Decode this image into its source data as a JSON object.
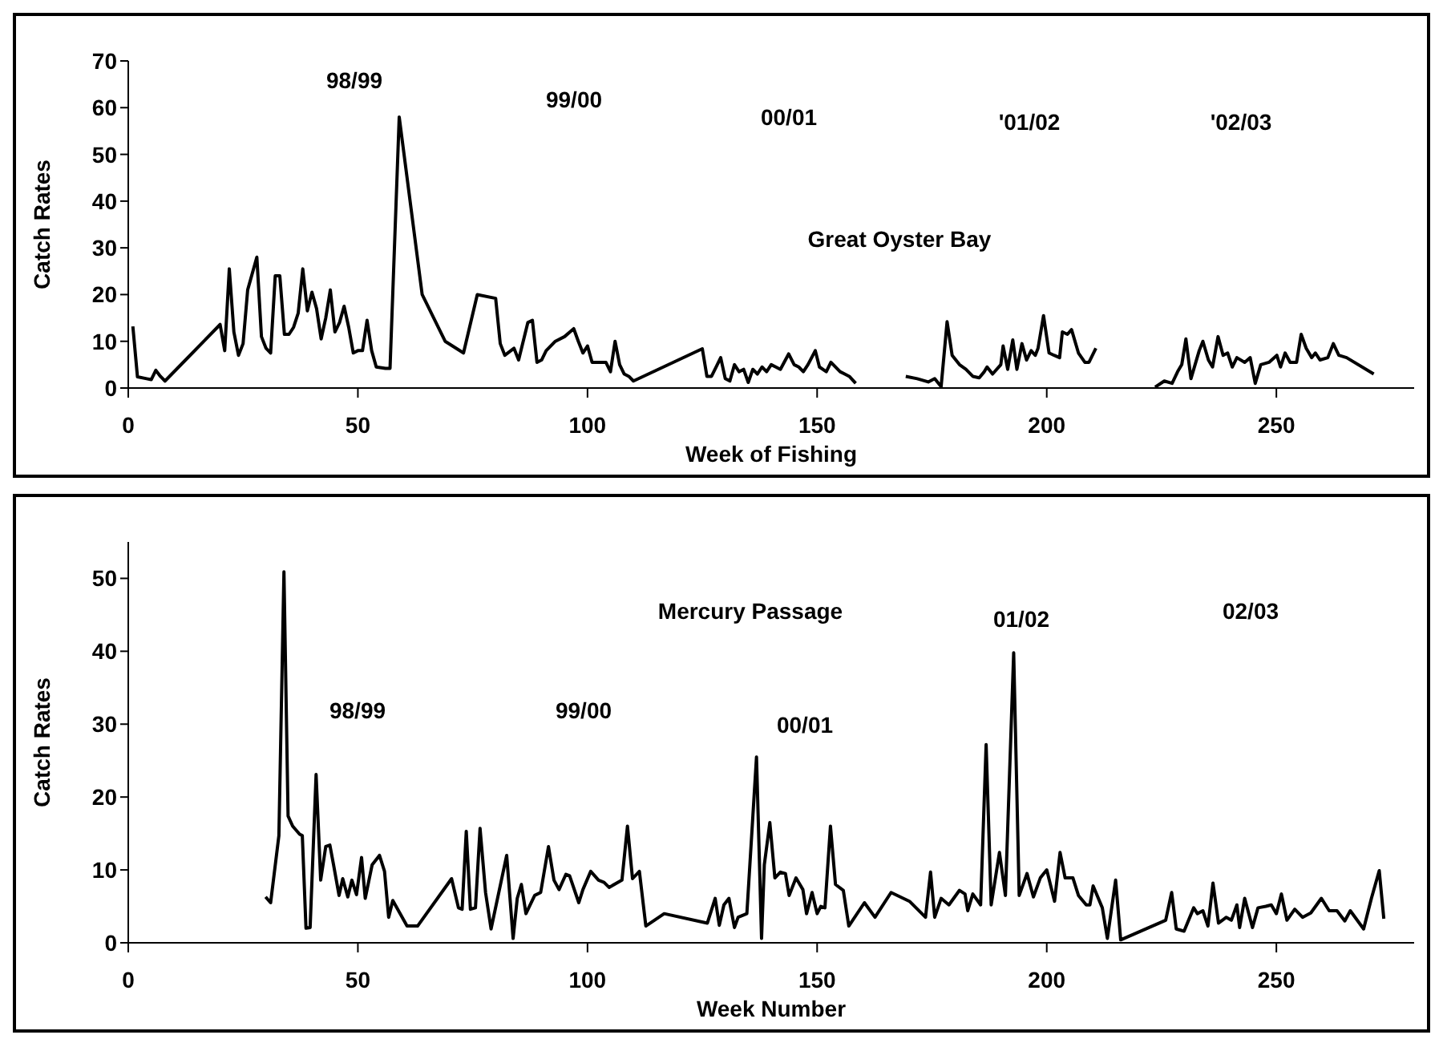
{
  "chart_data": [
    {
      "type": "line",
      "xlabel": "Week of Fishing",
      "ylabel": "Catch Rates",
      "color": "#000000",
      "xlim": [
        0,
        280
      ],
      "xticks": [
        0,
        50,
        100,
        150,
        200,
        250
      ],
      "ylim": [
        0,
        70
      ],
      "yticks": [
        0,
        10,
        20,
        30,
        40,
        50,
        60,
        70
      ],
      "annotations": [
        "98/99",
        "99/00",
        "00/01",
        "'01/02",
        "'02/03",
        "Great Oyster Bay"
      ],
      "x": [
        1,
        2,
        4,
        5,
        6,
        7,
        8,
        20,
        21,
        22,
        23,
        24,
        25,
        26,
        28,
        29,
        30,
        31,
        32,
        33,
        34,
        35,
        36,
        37,
        38,
        39,
        40,
        41,
        42,
        43,
        44,
        45,
        46,
        47,
        48,
        49,
        50,
        51,
        52,
        53,
        54,
        56,
        57,
        59,
        64,
        69,
        73,
        76,
        80,
        81,
        82,
        84,
        85,
        87,
        88,
        89,
        90,
        91,
        93,
        95,
        97,
        98,
        99,
        100,
        101,
        103,
        104,
        105,
        106,
        107,
        108,
        109,
        110,
        125,
        126,
        127,
        128,
        129,
        130,
        131,
        132,
        133,
        134,
        135,
        136,
        137,
        138,
        139,
        140,
        141,
        142,
        143.8,
        145,
        146,
        147,
        148,
        149.6,
        150.5,
        152,
        153,
        155,
        156,
        157,
        158.4,
        163,
        169.3,
        171.8,
        174.2,
        175.6,
        177,
        178.3,
        179.4,
        181,
        182.4,
        183.9,
        185.3,
        186.4,
        187,
        188.2,
        190,
        190.5,
        191.5,
        192.6,
        193.5,
        194.6,
        195.6,
        196.6,
        197.5,
        198.1,
        199.3,
        200.5,
        201.6,
        202.8,
        203.4,
        204.5,
        205.4,
        206.9,
        208.3,
        209.2,
        210.7,
        217,
        223.6,
        225.6,
        227.3,
        228.5,
        229.4,
        230.3,
        231.4,
        233.2,
        234,
        235.2,
        236.1,
        237.3,
        238.4,
        239.4,
        240.4,
        241.4,
        243.1,
        244.3,
        245.4,
        246.6,
        248.4,
        250.1,
        250.9,
        251.9,
        253,
        254.4,
        255.4,
        256.5,
        257.7,
        258.5,
        259.5,
        261.2,
        262.4,
        263.6,
        265.3,
        271.2
      ],
      "values": [
        13.2,
        2.4,
        2,
        1.8,
        3.8,
        2.5,
        1.5,
        13.6,
        8,
        25.5,
        12,
        7,
        9.5,
        21,
        28,
        11,
        8.5,
        7.5,
        24,
        24,
        11.5,
        11.5,
        13,
        16,
        25.5,
        16.5,
        20.5,
        17,
        10.5,
        15,
        21,
        12,
        14,
        17.5,
        13,
        7.5,
        8,
        8,
        14.5,
        8,
        4.5,
        4.2,
        4.2,
        58,
        20,
        10,
        7.5,
        20,
        19.2,
        9.5,
        7,
        8.5,
        6,
        14,
        14.5,
        5.5,
        6,
        8,
        10,
        11,
        12.7,
        10,
        7.5,
        9,
        5.5,
        5.5,
        5.5,
        3.5,
        10,
        5,
        3,
        2.5,
        1.5,
        8.4,
        2.5,
        2.5,
        4.5,
        6.5,
        2,
        1.5,
        5,
        3.5,
        4,
        1.2,
        4,
        3,
        4.5,
        3.5,
        5,
        4.5,
        4,
        7.3,
        5,
        4.5,
        3.5,
        5,
        8,
        4.5,
        3.5,
        5.5,
        3.5,
        3,
        2.5,
        1,
        null,
        2.5,
        2,
        1.3,
        2,
        0.3,
        14.2,
        7,
        5,
        4,
        2.5,
        2.2,
        3.5,
        4.5,
        3,
        5,
        9,
        4,
        10.3,
        4,
        9.5,
        6,
        8,
        7,
        8.5,
        15.5,
        7.5,
        7,
        6.5,
        12,
        11.5,
        12.5,
        7.5,
        5.5,
        5.5,
        8.5,
        null,
        0.2,
        1.5,
        1,
        3.5,
        5,
        10.5,
        2,
        8,
        10,
        6,
        4.5,
        11,
        7,
        7.5,
        4.5,
        6.5,
        5.5,
        6.5,
        1,
        5,
        5.5,
        7,
        4.5,
        7.5,
        5.5,
        5.5,
        11.5,
        8.5,
        6.5,
        7.5,
        6,
        6.5,
        9.5,
        7,
        6.5,
        3
      ]
    },
    {
      "type": "line",
      "xlabel": "Week Number",
      "ylabel": "Catch Rates",
      "color": "#000000",
      "xlim": [
        0,
        280
      ],
      "xticks": [
        0,
        50,
        100,
        150,
        200,
        250
      ],
      "ylim": [
        0,
        55
      ],
      "yticks": [
        0,
        10,
        20,
        30,
        40,
        50
      ],
      "annotations": [
        "Mercury Passage",
        "98/99",
        "99/00",
        "00/01",
        "01/02",
        "02/03"
      ],
      "x": [
        29.9,
        31,
        32.8,
        33.9,
        34.8,
        35.8,
        37.3,
        37.9,
        38.7,
        39.6,
        40.9,
        41.9,
        43,
        43.9,
        44.7,
        45.9,
        46.7,
        47.8,
        48.7,
        49.7,
        50.8,
        51.6,
        53.1,
        54.7,
        55.8,
        56.7,
        57.6,
        60.7,
        63,
        70.4,
        71.9,
        72.7,
        73.6,
        74.5,
        75.6,
        76.6,
        77.8,
        79,
        82.4,
        83.8,
        84.7,
        85.6,
        86.6,
        88.5,
        89.8,
        91.5,
        92.7,
        93.8,
        95.3,
        96.1,
        98.1,
        99,
        100.7,
        102.4,
        103.6,
        104.7,
        107.5,
        108.7,
        109.8,
        111.3,
        112.7,
        116.7,
        126.1,
        127.8,
        128.7,
        129.7,
        130.8,
        132,
        132.8,
        134.7,
        136.8,
        137.9,
        138.5,
        139.7,
        140.8,
        142,
        143.1,
        143.9,
        145.4,
        146.9,
        147.7,
        148.9,
        150,
        150.8,
        151.7,
        152.9,
        154,
        155.7,
        156.9,
        160.3,
        162.6,
        166.1,
        170.1,
        173.6,
        174.7,
        175.6,
        177,
        178.7,
        181,
        182.2,
        182.8,
        183.9,
        185.6,
        186.8,
        187.9,
        189.7,
        191,
        192.8,
        194,
        195.7,
        197.1,
        198.6,
        200,
        201.7,
        202.9,
        204,
        205.7,
        206.9,
        208.6,
        209.4,
        210.1,
        212.1,
        213.2,
        215,
        216.1,
        225.9,
        227.2,
        228.2,
        229.9,
        232,
        232.8,
        234,
        235.1,
        236.2,
        237.4,
        239.1,
        240.2,
        241.4,
        242,
        243.1,
        244.8,
        246,
        247.7,
        248.9,
        250,
        251.1,
        252.3,
        254,
        255.7,
        257.5,
        259.8,
        261.5,
        263.2,
        264.9,
        266.1,
        269,
        270.7,
        272.4,
        273.4
      ],
      "values": [
        6.3,
        5.5,
        14.7,
        50.9,
        17.4,
        16,
        14.9,
        14.7,
        2,
        2.1,
        23.1,
        8.6,
        13.2,
        13.4,
        10.7,
        6.5,
        8.8,
        6.3,
        8.6,
        6.6,
        11.7,
        6.1,
        10.7,
        12,
        9.8,
        3.5,
        5.8,
        2.3,
        2.3,
        8.8,
        4.8,
        4.6,
        15.3,
        4.6,
        4.8,
        15.7,
        6.9,
        1.9,
        12,
        0.6,
        6.1,
        8,
        4,
        6.5,
        6.9,
        13.2,
        8.6,
        7.3,
        9.4,
        9.2,
        5.5,
        7.3,
        9.8,
        8.6,
        8.3,
        7.6,
        8.6,
        16,
        8.8,
        9.8,
        2.3,
        4,
        2.7,
        6.1,
        2.4,
        5.2,
        6.1,
        2.1,
        3.5,
        4,
        25.5,
        0.6,
        10.7,
        16.5,
        8.9,
        9.7,
        9.5,
        6.5,
        8.9,
        7.3,
        4,
        6.9,
        4,
        5,
        4.8,
        16,
        8,
        7.2,
        2.3,
        5.5,
        3.5,
        6.9,
        5.7,
        3.5,
        9.7,
        3.5,
        6.1,
        5.2,
        7.2,
        6.7,
        4.4,
        6.7,
        5.2,
        27.2,
        5.2,
        12.4,
        6.5,
        39.8,
        6.5,
        9.5,
        6.3,
        8.9,
        10,
        5.7,
        12.4,
        8.9,
        8.9,
        6.5,
        5.2,
        5.2,
        7.8,
        4.8,
        0.6,
        8.6,
        0.4,
        3.1,
        6.9,
        1.9,
        1.6,
        4.8,
        4,
        4.4,
        2.3,
        8.2,
        2.7,
        3.5,
        3.1,
        5.2,
        2.1,
        6.1,
        2.1,
        4.8,
        5,
        5.2,
        4,
        6.7,
        3.1,
        4.6,
        3.5,
        4.1,
        6.1,
        4.4,
        4.4,
        3,
        4.4,
        1.9,
        6.1,
        9.9,
        3.3
      ]
    }
  ]
}
